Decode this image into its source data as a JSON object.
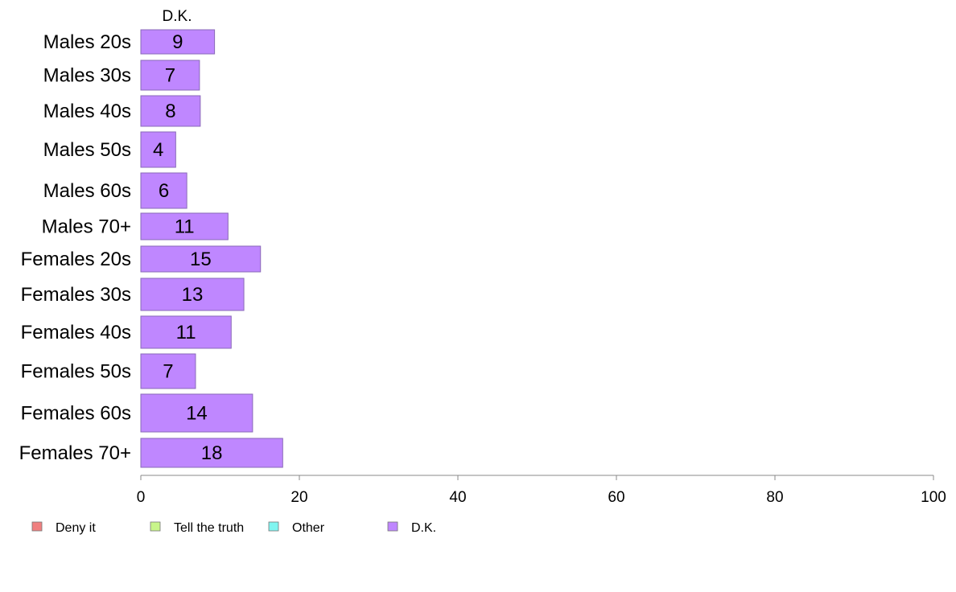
{
  "chart_data": {
    "type": "bar",
    "orientation": "horizontal",
    "stacked": true,
    "title": "",
    "xlabel": "",
    "ylabel": "",
    "xlim": [
      0,
      100
    ],
    "x_ticks": [
      0,
      20,
      40,
      60,
      80,
      100
    ],
    "grid": false,
    "legend_position": "bottom-left",
    "column_header": "D.K.",
    "categories": [
      "Males 20s",
      "Males 30s",
      "Males 40s",
      "Males 50s",
      "Males 60s",
      "Males 70+",
      "Females 20s",
      "Females 30s",
      "Females 40s",
      "Females 50s",
      "Females 60s",
      "Females 70+"
    ],
    "series": [
      {
        "name": "Deny it",
        "color": "#f08080",
        "values": [
          0,
          0,
          0,
          0,
          0,
          0,
          0,
          0,
          0,
          0,
          0,
          0
        ],
        "show_labels": false
      },
      {
        "name": "Tell the truth",
        "color": "#c8f58a",
        "values": [
          0,
          0,
          0,
          0,
          0,
          0,
          0,
          0,
          0,
          0,
          0,
          0
        ],
        "show_labels": false
      },
      {
        "name": "Other",
        "color": "#80f5f0",
        "values": [
          0,
          0,
          0,
          0,
          0,
          0,
          0,
          0,
          0,
          0,
          0,
          0
        ],
        "show_labels": false
      },
      {
        "name": "D.K.",
        "color": "#bf87ff",
        "values": [
          9.3,
          7.4,
          7.5,
          4.4,
          5.8,
          11,
          15.1,
          13,
          11.4,
          6.9,
          14.1,
          17.9
        ],
        "labels": [
          "9",
          "7",
          "8",
          "4",
          "6",
          "11",
          "15",
          "13",
          "11",
          "7",
          "14",
          "18"
        ],
        "show_labels": true
      }
    ]
  }
}
